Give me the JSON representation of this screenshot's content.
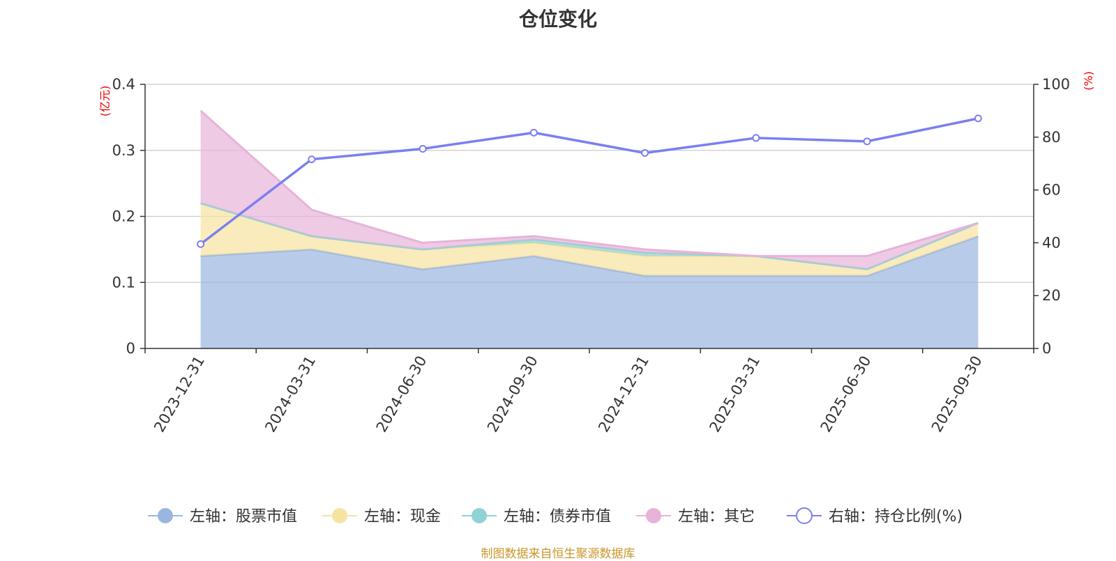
{
  "chart_data": {
    "type": "area",
    "title": "仓位变化",
    "categories": [
      "2023-12-31",
      "2024-03-31",
      "2024-06-30",
      "2024-09-30",
      "2024-12-31",
      "2025-03-31",
      "2025-06-30",
      "2025-09-30"
    ],
    "left_axis": {
      "unit": "(亿元)",
      "ylim": [
        0,
        0.4
      ],
      "ticks": [
        "0",
        "0.1",
        "0.2",
        "0.3",
        "0.4"
      ]
    },
    "right_axis": {
      "unit": "(%)",
      "ylim": [
        0,
        100
      ],
      "ticks": [
        "0",
        "20",
        "40",
        "60",
        "80",
        "100"
      ]
    },
    "grid": true,
    "legend_position": "bottom",
    "series": [
      {
        "name": "左轴：股票市值",
        "axis": "left",
        "kind": "stacked-area",
        "color": "#9ab6e0",
        "values": [
          0.14,
          0.15,
          0.12,
          0.14,
          0.11,
          0.11,
          0.11,
          0.17
        ]
      },
      {
        "name": "左轴：现金",
        "axis": "left",
        "kind": "stacked-area",
        "color": "#f7e3a0",
        "values": [
          0.08,
          0.02,
          0.03,
          0.02,
          0.03,
          0.03,
          0.01,
          0.02
        ]
      },
      {
        "name": "左轴：债券市值",
        "axis": "left",
        "kind": "stacked-area",
        "color": "#8fd3d6",
        "values": [
          0,
          0,
          0,
          0.005,
          0.005,
          0,
          0,
          0
        ]
      },
      {
        "name": "左轴：其它",
        "axis": "left",
        "kind": "stacked-area",
        "color": "#e7b3d9",
        "values": [
          0.14,
          0.04,
          0.01,
          0.005,
          0.005,
          0,
          0.02,
          0
        ]
      },
      {
        "name": "右轴：持仓比例(%)",
        "axis": "right",
        "kind": "line",
        "color": "#7b7ff0",
        "values": [
          39.5,
          71.6,
          75.6,
          81.7,
          74.0,
          79.7,
          78.4,
          87.1
        ]
      }
    ],
    "source_note": "制图数据来自恒生聚源数据库"
  }
}
